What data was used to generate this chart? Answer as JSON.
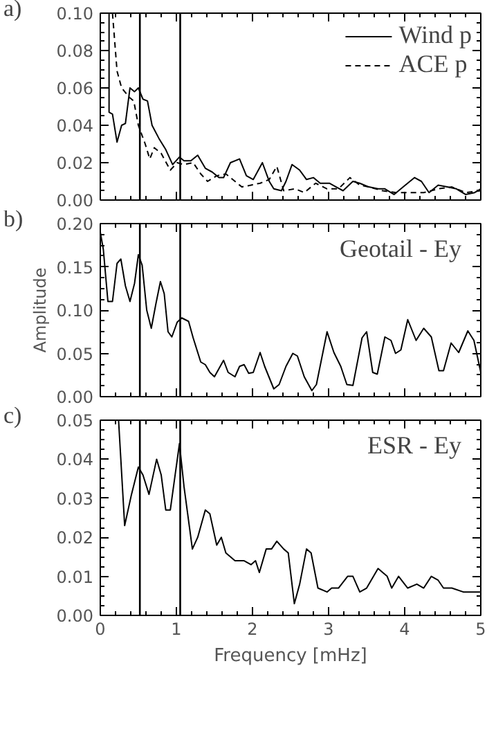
{
  "chart_data": [
    {
      "type": "line",
      "title": "a)",
      "xlim": [
        0,
        5
      ],
      "xticks": [
        0,
        1,
        2,
        3,
        4,
        5
      ],
      "ylim": [
        0,
        0.1
      ],
      "yticks": [
        {
          "value": 0,
          "label": "0.00"
        },
        {
          "value": 0.02,
          "label": "0.02"
        },
        {
          "value": 0.04,
          "label": "0.04"
        },
        {
          "value": 0.06,
          "label": "0.06"
        },
        {
          "value": 0.08,
          "label": "0.08"
        },
        {
          "value": 0.1,
          "label": "0.10"
        }
      ],
      "tick_labels": "y",
      "grid": false,
      "legend": "top right",
      "ref_lines": [
        {
          "axis": "x",
          "value": 0.52,
          "color": "#000000"
        },
        {
          "axis": "x",
          "value": 1.05,
          "color": "#000000"
        }
      ],
      "series": [
        {
          "name": "Wind p",
          "color": "#000000",
          "line_style": "solid",
          "x": [
            0.115,
            0.115,
            0.16,
            0.22,
            0.28,
            0.33,
            0.39,
            0.45,
            0.5,
            0.56,
            0.62,
            0.68,
            0.77,
            0.86,
            0.95,
            1.04,
            1.1,
            1.19,
            1.28,
            1.38,
            1.47,
            1.56,
            1.62,
            1.71,
            1.83,
            1.92,
            2.01,
            2.13,
            2.22,
            2.28,
            2.38,
            2.44,
            2.52,
            2.62,
            2.71,
            2.8,
            2.89,
            3.01,
            3.1,
            3.19,
            3.32,
            3.41,
            3.53,
            3.65,
            3.74,
            3.86,
            3.98,
            4.13,
            4.22,
            4.32,
            4.44,
            4.56,
            4.68,
            4.8,
            4.92,
            5.0
          ],
          "values": [
            0.1,
            0.047,
            0.046,
            0.031,
            0.04,
            0.041,
            0.06,
            0.058,
            0.06,
            0.054,
            0.053,
            0.04,
            0.033,
            0.027,
            0.019,
            0.023,
            0.021,
            0.021,
            0.024,
            0.017,
            0.015,
            0.012,
            0.012,
            0.02,
            0.022,
            0.013,
            0.011,
            0.02,
            0.01,
            0.006,
            0.005,
            0.01,
            0.019,
            0.016,
            0.011,
            0.012,
            0.009,
            0.009,
            0.007,
            0.005,
            0.01,
            0.009,
            0.007,
            0.006,
            0.006,
            0.003,
            0.007,
            0.012,
            0.01,
            0.004,
            0.008,
            0.007,
            0.006,
            0.003,
            0.004,
            0.006
          ]
        },
        {
          "name": "ACE p",
          "color": "#000000",
          "line_style": "dashed",
          "x": [
            0.16,
            0.22,
            0.28,
            0.38,
            0.44,
            0.5,
            0.59,
            0.65,
            0.71,
            0.8,
            0.92,
            1.01,
            1.1,
            1.22,
            1.32,
            1.41,
            1.53,
            1.65,
            1.74,
            1.86,
            1.98,
            2.1,
            2.22,
            2.32,
            2.41,
            2.56,
            2.68,
            2.83,
            2.98,
            3.13,
            3.28,
            3.41,
            3.53,
            3.71,
            3.89,
            4.07,
            4.25,
            4.44,
            4.62,
            4.8,
            5.0
          ],
          "values": [
            0.1,
            0.069,
            0.06,
            0.055,
            0.053,
            0.04,
            0.03,
            0.022,
            0.028,
            0.025,
            0.016,
            0.02,
            0.019,
            0.02,
            0.014,
            0.01,
            0.013,
            0.014,
            0.011,
            0.007,
            0.008,
            0.009,
            0.011,
            0.018,
            0.005,
            0.006,
            0.004,
            0.009,
            0.006,
            0.006,
            0.012,
            0.008,
            0.007,
            0.005,
            0.004,
            0.004,
            0.004,
            0.006,
            0.007,
            0.004,
            0.005
          ]
        }
      ]
    },
    {
      "type": "line",
      "title": "b)",
      "ylabel": "Amplitude",
      "xlim": [
        0,
        5
      ],
      "xticks": [
        0,
        1,
        2,
        3,
        4,
        5
      ],
      "ylim": [
        0,
        0.2
      ],
      "yticks": [
        {
          "value": 0,
          "label": "0.00"
        },
        {
          "value": 0.05,
          "label": "0.05"
        },
        {
          "value": 0.1,
          "label": "0.10"
        },
        {
          "value": 0.15,
          "label": "0.15"
        },
        {
          "value": 0.2,
          "label": "0.20"
        }
      ],
      "tick_labels": "y",
      "grid": false,
      "legend": "top right",
      "ref_lines": [
        {
          "axis": "x",
          "value": 0.52,
          "color": "#000000"
        },
        {
          "axis": "x",
          "value": 1.05,
          "color": "#000000"
        }
      ],
      "series": [
        {
          "name": "Geotail - Ey",
          "color": "#000000",
          "line_style": "solid",
          "x": [
            0.0,
            0.04,
            0.1,
            0.16,
            0.22,
            0.27,
            0.33,
            0.39,
            0.45,
            0.5,
            0.55,
            0.61,
            0.67,
            0.73,
            0.79,
            0.84,
            0.89,
            0.94,
            1.01,
            1.07,
            1.16,
            1.22,
            1.32,
            1.38,
            1.44,
            1.5,
            1.62,
            1.68,
            1.77,
            1.83,
            1.89,
            1.95,
            2.01,
            2.1,
            2.16,
            2.28,
            2.35,
            2.44,
            2.53,
            2.59,
            2.68,
            2.78,
            2.84,
            2.98,
            3.07,
            3.16,
            3.24,
            3.32,
            3.44,
            3.5,
            3.58,
            3.64,
            3.74,
            3.82,
            3.88,
            3.95,
            4.04,
            4.15,
            4.25,
            4.35,
            4.45,
            4.51,
            4.61,
            4.71,
            4.83,
            4.91,
            5.0
          ],
          "values": [
            0.19,
            0.17,
            0.11,
            0.11,
            0.154,
            0.159,
            0.128,
            0.11,
            0.131,
            0.164,
            0.152,
            0.1,
            0.079,
            0.107,
            0.133,
            0.119,
            0.075,
            0.069,
            0.086,
            0.091,
            0.087,
            0.068,
            0.04,
            0.037,
            0.028,
            0.023,
            0.042,
            0.028,
            0.023,
            0.035,
            0.037,
            0.027,
            0.028,
            0.051,
            0.035,
            0.009,
            0.014,
            0.035,
            0.05,
            0.047,
            0.023,
            0.007,
            0.014,
            0.075,
            0.051,
            0.035,
            0.014,
            0.013,
            0.068,
            0.075,
            0.028,
            0.026,
            0.069,
            0.065,
            0.05,
            0.054,
            0.089,
            0.065,
            0.079,
            0.069,
            0.03,
            0.03,
            0.062,
            0.051,
            0.076,
            0.065,
            0.028
          ]
        }
      ]
    },
    {
      "type": "line",
      "title": "c)",
      "xlabel": "Frequency [mHz]",
      "xlim": [
        0,
        5
      ],
      "xticks": [
        0,
        1,
        2,
        3,
        4,
        5
      ],
      "ylim": [
        0,
        0.05
      ],
      "yticks": [
        {
          "value": 0,
          "label": "0.00"
        },
        {
          "value": 0.01,
          "label": "0.01"
        },
        {
          "value": 0.02,
          "label": "0.02"
        },
        {
          "value": 0.03,
          "label": "0.03"
        },
        {
          "value": 0.04,
          "label": "0.04"
        },
        {
          "value": 0.05,
          "label": "0.05"
        }
      ],
      "grid": false,
      "legend": "top right",
      "ref_lines": [
        {
          "axis": "x",
          "value": 0.52,
          "color": "#000000"
        },
        {
          "axis": "x",
          "value": 1.05,
          "color": "#000000"
        }
      ],
      "series": [
        {
          "name": "ESR - Ey",
          "color": "#000000",
          "line_style": "solid",
          "x": [
            0.24,
            0.32,
            0.41,
            0.5,
            0.56,
            0.64,
            0.74,
            0.8,
            0.86,
            0.92,
            1.04,
            1.1,
            1.21,
            1.28,
            1.38,
            1.44,
            1.53,
            1.59,
            1.65,
            1.77,
            1.89,
            1.98,
            2.04,
            2.09,
            2.18,
            2.25,
            2.32,
            2.41,
            2.47,
            2.55,
            2.62,
            2.71,
            2.77,
            2.86,
            2.98,
            3.04,
            3.13,
            3.25,
            3.32,
            3.41,
            3.5,
            3.65,
            3.77,
            3.83,
            3.92,
            4.04,
            4.16,
            4.25,
            4.35,
            4.44,
            4.51,
            4.62,
            4.77,
            4.89,
            5.0
          ],
          "values": [
            0.05,
            0.023,
            0.031,
            0.038,
            0.036,
            0.031,
            0.04,
            0.036,
            0.027,
            0.027,
            0.044,
            0.033,
            0.017,
            0.02,
            0.027,
            0.026,
            0.018,
            0.02,
            0.016,
            0.014,
            0.014,
            0.013,
            0.014,
            0.011,
            0.017,
            0.017,
            0.019,
            0.017,
            0.016,
            0.003,
            0.008,
            0.017,
            0.016,
            0.007,
            0.006,
            0.007,
            0.007,
            0.01,
            0.01,
            0.006,
            0.007,
            0.012,
            0.01,
            0.007,
            0.01,
            0.007,
            0.008,
            0.007,
            0.01,
            0.009,
            0.007,
            0.007,
            0.006,
            0.006,
            0.006
          ]
        }
      ]
    }
  ]
}
